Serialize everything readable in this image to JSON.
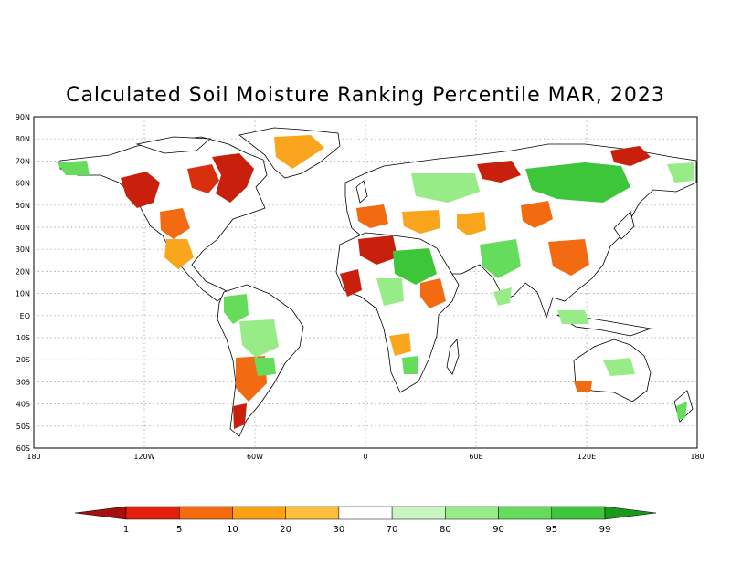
{
  "title": "Calculated Soil Moisture Ranking Percentile MAR, 2023",
  "map": {
    "lat_labels": [
      "90N",
      "80N",
      "70N",
      "60N",
      "50N",
      "40N",
      "30N",
      "20N",
      "10N",
      "EQ",
      "10S",
      "20S",
      "30S",
      "40S",
      "50S",
      "60S"
    ],
    "lon_labels": [
      "180",
      "120W",
      "60W",
      "0",
      "60E",
      "120E",
      "180"
    ]
  },
  "legend": {
    "labels": [
      "1",
      "5",
      "10",
      "20",
      "30",
      "70",
      "80",
      "90",
      "95",
      "99"
    ],
    "colors": [
      "#a50f0f",
      "#e3200e",
      "#f46a0c",
      "#fb9f13",
      "#fdbe3c",
      "#ffffff",
      "#c9f5c0",
      "#98ec88",
      "#66dc5c",
      "#3ec63a",
      "#1a9a1a"
    ]
  },
  "colors": {
    "very_dry": "#c8200c",
    "dry": "#f26b12",
    "moderately_dry": "#f9a51d",
    "near_normal": "#ffffff",
    "moderately_wet": "#a8ec98",
    "wet": "#66dc5c",
    "very_wet": "#3ec63a",
    "coastline": "#000000"
  }
}
